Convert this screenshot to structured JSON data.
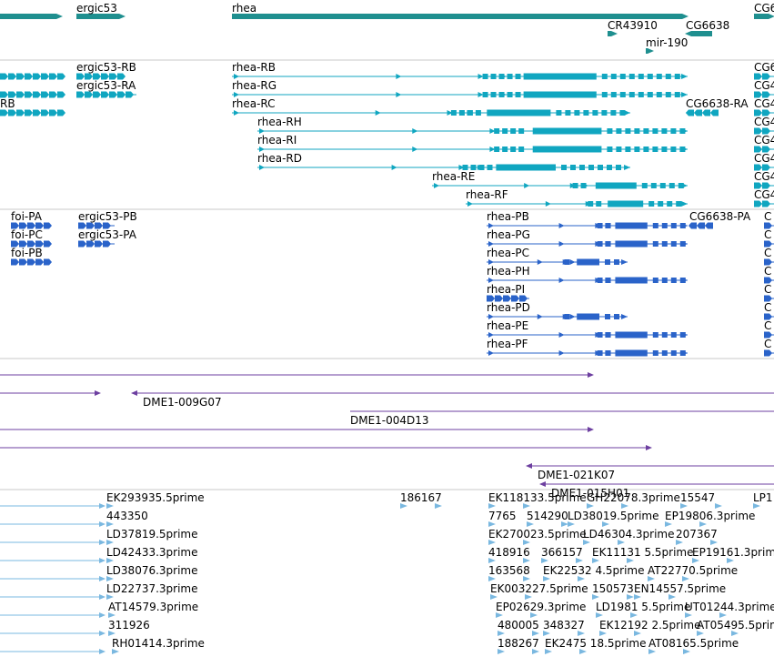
{
  "colors": {
    "gene": "#1f8f8f",
    "transcript": "#10a6c0",
    "protein": "#2a63c9",
    "clone": "#6d3fa0",
    "est": "#7ab8e0",
    "separator": "#c8c8c8"
  },
  "tracks": [
    {
      "id": "genes",
      "color": "gene",
      "features": [
        {
          "label": "",
          "row": 0,
          "start": 0,
          "end": 68,
          "strand": "+",
          "style": "block"
        },
        {
          "label": "ergic53",
          "row": 0,
          "start": 84,
          "end": 137,
          "strand": "+",
          "style": "block"
        },
        {
          "label": "rhea",
          "row": 0,
          "start": 255,
          "end": 756,
          "strand": "+",
          "style": "block"
        },
        {
          "label": "CG6",
          "row": 0,
          "start": 829,
          "end": 851,
          "strand": "+",
          "style": "block"
        },
        {
          "label": "CR43910",
          "row": 1,
          "start": 668,
          "end": 678,
          "strand": "+",
          "style": "block"
        },
        {
          "label": "CG6638",
          "row": 1,
          "start": 754,
          "end": 783,
          "strand": "-",
          "style": "block"
        },
        {
          "label": "mir-190",
          "row": 2,
          "start": 710,
          "end": 716,
          "strand": "+",
          "style": "block"
        }
      ]
    },
    {
      "id": "transcripts",
      "color": "transcript",
      "features": [
        {
          "label": "",
          "row": 0,
          "start": 0,
          "end": 68,
          "strand": "+",
          "style": "exons"
        },
        {
          "label": "ergic53-RB",
          "row": 0,
          "start": 84,
          "end": 137,
          "strand": "+",
          "style": "exons"
        },
        {
          "label": "rhea-RB",
          "row": 0,
          "start": 255,
          "end": 756,
          "strand": "+",
          "style": "exons"
        },
        {
          "label": "CG6",
          "row": 0,
          "start": 829,
          "end": 851,
          "strand": "+",
          "style": "exons"
        },
        {
          "label": "",
          "row": 1,
          "start": 0,
          "end": 68,
          "strand": "+",
          "style": "exons"
        },
        {
          "label": "ergic53-RA",
          "row": 1,
          "start": 84,
          "end": 150,
          "strand": "+",
          "style": "exons"
        },
        {
          "label": "rhea-RG",
          "row": 1,
          "start": 255,
          "end": 756,
          "strand": "+",
          "style": "exons"
        },
        {
          "label": "CG4",
          "row": 1,
          "start": 829,
          "end": 851,
          "strand": "+",
          "style": "exons"
        },
        {
          "label": "RB",
          "row": 2,
          "start": 0,
          "end": 68,
          "strand": "+",
          "style": "exons"
        },
        {
          "label": "rhea-RC",
          "row": 2,
          "start": 255,
          "end": 693,
          "strand": "+",
          "style": "exons"
        },
        {
          "label": "CG6638-RA",
          "row": 2,
          "start": 754,
          "end": 790,
          "strand": "-",
          "style": "exons"
        },
        {
          "label": "CG4",
          "row": 2,
          "start": 829,
          "end": 851,
          "strand": "+",
          "style": "exons"
        },
        {
          "label": "rhea-RH",
          "row": 3,
          "start": 283,
          "end": 756,
          "strand": "+",
          "style": "exons"
        },
        {
          "label": "CG4",
          "row": 3,
          "start": 829,
          "end": 851,
          "strand": "+",
          "style": "exons"
        },
        {
          "label": "rhea-RI",
          "row": 4,
          "start": 283,
          "end": 756,
          "strand": "+",
          "style": "exons"
        },
        {
          "label": "CG4",
          "row": 4,
          "start": 829,
          "end": 851,
          "strand": "+",
          "style": "exons"
        },
        {
          "label": "rhea-RD",
          "row": 5,
          "start": 283,
          "end": 693,
          "strand": "+",
          "style": "exons"
        },
        {
          "label": "CG4",
          "row": 5,
          "start": 829,
          "end": 851,
          "strand": "+",
          "style": "exons"
        },
        {
          "label": "rhea-RE",
          "row": 6,
          "start": 475,
          "end": 756,
          "strand": "+",
          "style": "exons"
        },
        {
          "label": "CG4",
          "row": 6,
          "start": 829,
          "end": 851,
          "strand": "+",
          "style": "exons"
        },
        {
          "label": "rhea-RF",
          "row": 7,
          "start": 512,
          "end": 756,
          "strand": "+",
          "style": "exons"
        },
        {
          "label": "CG4",
          "row": 7,
          "start": 829,
          "end": 851,
          "strand": "+",
          "style": "exons"
        }
      ]
    },
    {
      "id": "proteins",
      "color": "protein",
      "features": [
        {
          "label": "foi-PA",
          "row": 0,
          "start": 12,
          "end": 55,
          "strand": "+",
          "style": "exons"
        },
        {
          "label": "ergic53-PB",
          "row": 0,
          "start": 86,
          "end": 126,
          "strand": "+",
          "style": "exons"
        },
        {
          "label": "rhea-PB",
          "row": 0,
          "start": 535,
          "end": 756,
          "strand": "+",
          "style": "exons"
        },
        {
          "label": "CG6638-PA",
          "row": 0,
          "start": 758,
          "end": 784,
          "strand": "-",
          "style": "exons"
        },
        {
          "label": "C",
          "row": 0,
          "start": 840,
          "end": 851,
          "strand": "+",
          "style": "exons"
        },
        {
          "label": "foi-PC",
          "row": 1,
          "start": 12,
          "end": 55,
          "strand": "+",
          "style": "exons"
        },
        {
          "label": "ergic53-PA",
          "row": 1,
          "start": 86,
          "end": 126,
          "strand": "+",
          "style": "exons"
        },
        {
          "label": "rhea-PG",
          "row": 1,
          "start": 535,
          "end": 756,
          "strand": "+",
          "style": "exons"
        },
        {
          "label": "C",
          "row": 1,
          "start": 840,
          "end": 851,
          "strand": "+",
          "style": "exons"
        },
        {
          "label": "foi-PB",
          "row": 2,
          "start": 12,
          "end": 55,
          "strand": "+",
          "style": "exons"
        },
        {
          "label": "rhea-PC",
          "row": 2,
          "start": 535,
          "end": 690,
          "strand": "+",
          "style": "exons"
        },
        {
          "label": "C",
          "row": 2,
          "start": 840,
          "end": 851,
          "strand": "+",
          "style": "exons"
        },
        {
          "label": "rhea-PH",
          "row": 3,
          "start": 535,
          "end": 756,
          "strand": "+",
          "style": "exons"
        },
        {
          "label": "C",
          "row": 3,
          "start": 840,
          "end": 851,
          "strand": "+",
          "style": "exons"
        },
        {
          "label": "rhea-PI",
          "row": 4,
          "start": 535,
          "end": 582,
          "strand": "+",
          "style": "exons"
        },
        {
          "label": "C",
          "row": 4,
          "start": 840,
          "end": 851,
          "strand": "+",
          "style": "exons"
        },
        {
          "label": "rhea-PD",
          "row": 5,
          "start": 535,
          "end": 690,
          "strand": "+",
          "style": "exons"
        },
        {
          "label": "C",
          "row": 5,
          "start": 840,
          "end": 851,
          "strand": "+",
          "style": "exons"
        },
        {
          "label": "rhea-PE",
          "row": 6,
          "start": 535,
          "end": 756,
          "strand": "+",
          "style": "exons"
        },
        {
          "label": "C",
          "row": 6,
          "start": 840,
          "end": 851,
          "strand": "+",
          "style": "exons"
        },
        {
          "label": "rhea-PF",
          "row": 7,
          "start": 535,
          "end": 756,
          "strand": "+",
          "style": "exons"
        },
        {
          "label": "C",
          "row": 7,
          "start": 840,
          "end": 851,
          "strand": "+",
          "style": "exons"
        }
      ]
    },
    {
      "id": "clones",
      "color": "clone",
      "features": [
        {
          "label": "",
          "row": 0,
          "start": 0,
          "end": 652,
          "strand": "+",
          "style": "thin"
        },
        {
          "label": "DME1-009G07",
          "row": 1,
          "start": 145,
          "end": 851,
          "strand": "-",
          "style": "thin"
        },
        {
          "label": "",
          "row": 1,
          "start": 0,
          "end": 110,
          "strand": "+",
          "style": "thin"
        },
        {
          "label": "DME1-004D13",
          "row": 2,
          "start": 385,
          "end": 851,
          "strand": "+",
          "style": "thin"
        },
        {
          "label": "",
          "row": 3,
          "start": 0,
          "end": 652,
          "strand": "+",
          "style": "thin"
        },
        {
          "label": "",
          "row": 4,
          "start": 0,
          "end": 716,
          "strand": "+",
          "style": "thin"
        },
        {
          "label": "DME1-021K07",
          "row": 5,
          "start": 579,
          "end": 851,
          "strand": "-",
          "style": "thin"
        },
        {
          "label": "DME1-015H01",
          "row": 6,
          "start": 594,
          "end": 851,
          "strand": "-",
          "style": "thin"
        }
      ]
    },
    {
      "id": "ests",
      "color": "est",
      "features": [
        {
          "label": "",
          "row": 0,
          "start": 0,
          "end": 115,
          "strand": "+",
          "style": "thin"
        },
        {
          "label": "EK293935.5prime",
          "row": 0,
          "start": 117,
          "end": 135,
          "strand": "+",
          "style": "est"
        },
        {
          "label": "186167",
          "row": 0,
          "start": 440,
          "end": 530,
          "strand": "+",
          "style": "est"
        },
        {
          "label": "EK118133.5prime",
          "row": 0,
          "start": 537,
          "end": 645,
          "strand": "+",
          "style": "est"
        },
        {
          "label": "GH22078.3prime",
          "row": 0,
          "start": 645,
          "end": 748,
          "strand": "+",
          "style": "est"
        },
        {
          "label": "15547",
          "row": 0,
          "start": 748,
          "end": 826,
          "strand": "+",
          "style": "est"
        },
        {
          "label": "LP1",
          "row": 0,
          "start": 828,
          "end": 851,
          "strand": "+",
          "style": "est"
        },
        {
          "label": "",
          "row": 1,
          "start": 0,
          "end": 115,
          "strand": "+",
          "style": "thin"
        },
        {
          "label": "443350",
          "row": 1,
          "start": 117,
          "end": 135,
          "strand": "+",
          "style": "est"
        },
        {
          "label": "7765",
          "row": 1,
          "start": 537,
          "end": 575,
          "strand": "+",
          "style": "est"
        },
        {
          "label": "514290",
          "row": 1,
          "start": 579,
          "end": 620,
          "strand": "+",
          "style": "est"
        },
        {
          "label": "LD38019.5prime",
          "row": 1,
          "start": 624,
          "end": 728,
          "strand": "+",
          "style": "est"
        },
        {
          "label": "EP19806.3prime",
          "row": 1,
          "start": 731,
          "end": 832,
          "strand": "+",
          "style": "est"
        },
        {
          "label": "",
          "row": 2,
          "start": 0,
          "end": 115,
          "strand": "+",
          "style": "thin"
        },
        {
          "label": "LD37819.5prime",
          "row": 2,
          "start": 117,
          "end": 135,
          "strand": "+",
          "style": "est"
        },
        {
          "label": "EK270023.5prime",
          "row": 2,
          "start": 537,
          "end": 641,
          "strand": "+",
          "style": "est"
        },
        {
          "label": "LD46304.3prime",
          "row": 2,
          "start": 641,
          "end": 741,
          "strand": "+",
          "style": "est"
        },
        {
          "label": "207367",
          "row": 2,
          "start": 743,
          "end": 790,
          "strand": "+",
          "style": "est"
        },
        {
          "label": "",
          "row": 3,
          "start": 0,
          "end": 115,
          "strand": "+",
          "style": "thin"
        },
        {
          "label": "LD42433.3prime",
          "row": 3,
          "start": 117,
          "end": 135,
          "strand": "+",
          "style": "est"
        },
        {
          "label": "418916",
          "row": 3,
          "start": 537,
          "end": 580,
          "strand": "+",
          "style": "est"
        },
        {
          "label": "366157",
          "row": 3,
          "start": 595,
          "end": 640,
          "strand": "+",
          "style": "est"
        },
        {
          "label": "EK11131 5.5prime",
          "row": 3,
          "start": 651,
          "end": 758,
          "strand": "+",
          "style": "est"
        },
        {
          "label": "EP19161.3prime",
          "row": 3,
          "start": 761,
          "end": 851,
          "strand": "+",
          "style": "est"
        },
        {
          "label": "",
          "row": 4,
          "start": 0,
          "end": 115,
          "strand": "+",
          "style": "thin"
        },
        {
          "label": "LD38076.3prime",
          "row": 4,
          "start": 117,
          "end": 135,
          "strand": "+",
          "style": "est"
        },
        {
          "label": "163568",
          "row": 4,
          "start": 537,
          "end": 582,
          "strand": "+",
          "style": "est"
        },
        {
          "label": "EK22532 4.5prime",
          "row": 4,
          "start": 597,
          "end": 705,
          "strand": "+",
          "style": "est"
        },
        {
          "label": "AT22770.5prime",
          "row": 4,
          "start": 712,
          "end": 816,
          "strand": "+",
          "style": "est"
        },
        {
          "label": "",
          "row": 5,
          "start": 0,
          "end": 115,
          "strand": "+",
          "style": "thin"
        },
        {
          "label": "LD22737.3prime",
          "row": 5,
          "start": 117,
          "end": 135,
          "strand": "+",
          "style": "est"
        },
        {
          "label": "EK003227.5prime",
          "row": 5,
          "start": 539,
          "end": 647,
          "strand": "+",
          "style": "est"
        },
        {
          "label": "150573",
          "row": 5,
          "start": 651,
          "end": 695,
          "strand": "+",
          "style": "est"
        },
        {
          "label": "EN14557.5prime",
          "row": 5,
          "start": 697,
          "end": 800,
          "strand": "+",
          "style": "est"
        },
        {
          "label": "",
          "row": 6,
          "start": 0,
          "end": 115,
          "strand": "+",
          "style": "thin"
        },
        {
          "label": "AT14579.3prime",
          "row": 6,
          "start": 119,
          "end": 135,
          "strand": "+",
          "style": "est"
        },
        {
          "label": "EP02629.3prime",
          "row": 6,
          "start": 545,
          "end": 649,
          "strand": "+",
          "style": "est"
        },
        {
          "label": "LD1981 5.5prime",
          "row": 6,
          "start": 655,
          "end": 755,
          "strand": "+",
          "style": "est"
        },
        {
          "label": "UT01244.3prime",
          "row": 6,
          "start": 753,
          "end": 851,
          "strand": "+",
          "style": "est"
        },
        {
          "label": "",
          "row": 7,
          "start": 0,
          "end": 115,
          "strand": "+",
          "style": "thin"
        },
        {
          "label": "311926",
          "row": 7,
          "start": 119,
          "end": 135,
          "strand": "+",
          "style": "est"
        },
        {
          "label": "480005",
          "row": 7,
          "start": 547,
          "end": 595,
          "strand": "+",
          "style": "est"
        },
        {
          "label": "348327",
          "row": 7,
          "start": 597,
          "end": 645,
          "strand": "+",
          "style": "est"
        },
        {
          "label": "EK12192 2.5prime",
          "row": 7,
          "start": 659,
          "end": 766,
          "strand": "+",
          "style": "est"
        },
        {
          "label": "AT05495.5prime",
          "row": 7,
          "start": 766,
          "end": 851,
          "strand": "+",
          "style": "est"
        },
        {
          "label": "",
          "row": 8,
          "start": 0,
          "end": 115,
          "strand": "+",
          "style": "thin"
        },
        {
          "label": "RH01414.3prime",
          "row": 8,
          "start": 123,
          "end": 135,
          "strand": "+",
          "style": "est"
        },
        {
          "label": "188267",
          "row": 8,
          "start": 547,
          "end": 595,
          "strand": "+",
          "style": "est"
        },
        {
          "label": "EK2475 18.5prime",
          "row": 8,
          "start": 599,
          "end": 705,
          "strand": "+",
          "style": "est"
        },
        {
          "label": "AT08165.5prime",
          "row": 8,
          "start": 713,
          "end": 812,
          "strand": "+",
          "style": "est"
        }
      ]
    }
  ]
}
